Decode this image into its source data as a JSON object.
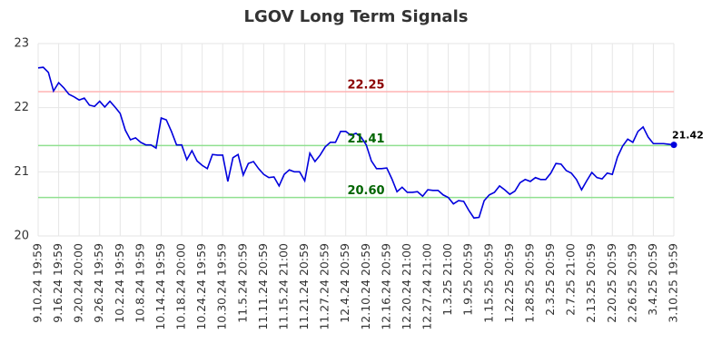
{
  "chart_data": {
    "type": "line",
    "title": "LGOV Long Term Signals",
    "categories": [
      "9.10.24 19:59",
      null,
      null,
      null,
      "9.16.24 19:59",
      null,
      null,
      null,
      "9.20.24 20:00",
      null,
      null,
      null,
      "9.26.24 19:59",
      null,
      null,
      null,
      "10.2.24 19:59",
      null,
      null,
      null,
      "10.8.24 19:59",
      null,
      null,
      null,
      "10.14.24 19:59",
      null,
      null,
      null,
      "10.18.24 20:00",
      null,
      null,
      null,
      "10.24.24 19:59",
      null,
      null,
      null,
      "10.30.24 19:59",
      null,
      null,
      null,
      "11.5.24 20:59",
      null,
      null,
      null,
      "11.11.24 20:59",
      null,
      null,
      null,
      "11.15.24 21:00",
      null,
      null,
      null,
      "11.21.24 20:59",
      null,
      null,
      null,
      "11.27.24 20:59",
      null,
      null,
      null,
      "12.4.24 20:59",
      null,
      null,
      null,
      "12.10.24 20:59",
      null,
      null,
      null,
      "12.16.24 20:59",
      null,
      null,
      null,
      "12.20.24 21:00",
      null,
      null,
      null,
      "12.27.24 21:00",
      null,
      null,
      null,
      "1.3.25 21:00",
      null,
      null,
      null,
      "1.9.25 20:59",
      null,
      null,
      null,
      "1.15.25 20:59",
      null,
      null,
      null,
      "1.22.25 20:59",
      null,
      null,
      null,
      "1.28.25 20:59",
      null,
      null,
      null,
      "2.3.25 20:59",
      null,
      null,
      null,
      "2.7.25 21:00",
      null,
      null,
      null,
      "2.13.25 20:59",
      null,
      null,
      null,
      "2.20.25 20:59",
      null,
      null,
      null,
      "2.26.25 20:59",
      null,
      null,
      null,
      "3.4.25 20:59",
      null,
      null,
      null,
      "3.10.25 19:59"
    ],
    "series": [
      {
        "name": "LGOV",
        "color": "#0000dd",
        "values": [
          22.62,
          22.63,
          22.55,
          22.26,
          22.39,
          22.31,
          22.21,
          22.17,
          22.12,
          22.15,
          22.04,
          22.02,
          22.1,
          22.01,
          22.1,
          22.01,
          21.91,
          21.65,
          21.5,
          21.53,
          21.46,
          21.42,
          21.42,
          21.37,
          21.84,
          21.81,
          21.63,
          21.42,
          21.42,
          21.19,
          21.33,
          21.17,
          21.1,
          21.05,
          21.27,
          21.26,
          21.26,
          20.85,
          21.22,
          21.27,
          20.95,
          21.13,
          21.16,
          21.05,
          20.96,
          20.91,
          20.92,
          20.78,
          20.96,
          21.03,
          21.0,
          21.0,
          20.86,
          21.29,
          21.16,
          21.26,
          21.39,
          21.46,
          21.46,
          21.63,
          21.63,
          21.57,
          21.6,
          21.54,
          21.42,
          21.17,
          21.05,
          21.05,
          21.06,
          20.89,
          20.69,
          20.76,
          20.68,
          20.68,
          20.69,
          20.62,
          20.72,
          20.71,
          20.71,
          20.64,
          20.6,
          20.5,
          20.55,
          20.54,
          20.4,
          20.28,
          20.29,
          20.55,
          20.64,
          20.68,
          20.78,
          20.72,
          20.65,
          20.7,
          20.83,
          20.88,
          20.85,
          20.91,
          20.88,
          20.88,
          20.98,
          21.13,
          21.12,
          21.02,
          20.98,
          20.88,
          20.72,
          20.86,
          20.99,
          20.91,
          20.89,
          20.98,
          20.96,
          21.23,
          21.4,
          21.51,
          21.46,
          21.63,
          21.7,
          21.54,
          21.44,
          21.44,
          21.44,
          21.43,
          21.42
        ]
      }
    ],
    "hlines": [
      {
        "value": 22.25,
        "label": "22.25",
        "color": "#ffb3b3",
        "label_color": "#8b0000"
      },
      {
        "value": 21.41,
        "label": "21.41",
        "color": "#90e090",
        "label_color": "#006400"
      },
      {
        "value": 20.6,
        "label": "20.60",
        "color": "#90e090",
        "label_color": "#006400"
      }
    ],
    "ylim": [
      20,
      23
    ],
    "yticks": [
      20,
      21,
      22,
      23
    ],
    "grid": true
  }
}
